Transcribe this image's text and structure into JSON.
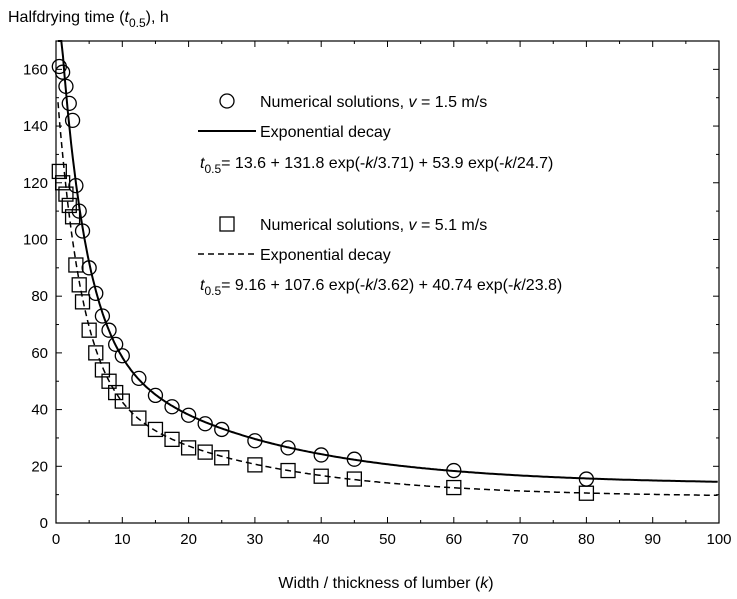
{
  "chart_data": {
    "type": "scatter",
    "ylabel": {
      "main": "Halfdrying time (",
      "italic": "t",
      "sub": "0.5",
      "tail": "), h"
    },
    "xlabel": {
      "main": "Width / thickness of lumber (",
      "italic": "k",
      "tail": ")"
    },
    "xlim": [
      0,
      100
    ],
    "ylim": [
      0,
      170
    ],
    "xticks": [
      "0",
      "10",
      "20",
      "30",
      "40",
      "50",
      "60",
      "70",
      "80",
      "90",
      "100"
    ],
    "yticks": [
      "0",
      "20",
      "40",
      "60",
      "80",
      "100",
      "120",
      "140",
      "160"
    ],
    "grid": false,
    "legend": {
      "placement": "top-right",
      "groups": [
        {
          "marker_label": {
            "prefix": "Numerical solutions, ",
            "var": "v",
            "suffix": " = 1.5 m/s"
          },
          "line_label": "Exponential decay",
          "equation": {
            "var": "t",
            "sub": "0.5",
            "text": "= 13.6 + 131.8 exp(-",
            "k1": "k",
            "mid": "/3.71) + 53.9 exp(-",
            "k2": "k",
            "end": "/24.7)"
          }
        },
        {
          "marker_label": {
            "prefix": "Numerical solutions, ",
            "var": "v",
            "suffix": " = 5.1 m/s"
          },
          "line_label": "Exponential decay",
          "equation": {
            "var": "t",
            "sub": "0.5",
            "text": "= 9.16 + 107.6 exp(-",
            "k1": "k",
            "mid": "/3.62) + 40.74 exp(-",
            "k2": "k",
            "end": "/23.8)"
          }
        }
      ]
    },
    "series": [
      {
        "marker": "circle",
        "line": "solid",
        "fit": {
          "y0": 13.6,
          "A1": 131.8,
          "t1": 3.71,
          "A2": 53.9,
          "t2": 24.7
        },
        "x": [
          0.5,
          1,
          1.5,
          2,
          2.5,
          3,
          3.5,
          4,
          5,
          6,
          7,
          8,
          9,
          10,
          12.5,
          15,
          17.5,
          20,
          22.5,
          25,
          30,
          35,
          40,
          45,
          60,
          80
        ],
        "y": [
          161,
          159,
          154,
          148,
          142,
          119,
          110,
          103,
          90,
          81,
          73,
          68,
          63,
          59,
          51,
          45,
          41,
          38,
          35,
          33,
          29,
          26.5,
          24,
          22.5,
          18.5,
          15.5
        ]
      },
      {
        "marker": "square",
        "line": "dashed",
        "fit": {
          "y0": 9.16,
          "A1": 107.6,
          "t1": 3.62,
          "A2": 40.74,
          "t2": 23.8
        },
        "x": [
          0.5,
          1,
          1.5,
          2,
          2.5,
          3,
          3.5,
          4,
          5,
          6,
          7,
          8,
          9,
          10,
          12.5,
          15,
          17.5,
          20,
          22.5,
          25,
          30,
          35,
          40,
          45,
          60,
          80
        ],
        "y": [
          124,
          120,
          116,
          112,
          108,
          91,
          84,
          78,
          68,
          60,
          54,
          50,
          46,
          43,
          37,
          33,
          29.5,
          26.5,
          25,
          23,
          20.5,
          18.5,
          16.5,
          15.5,
          12.5,
          10.5
        ]
      }
    ]
  }
}
